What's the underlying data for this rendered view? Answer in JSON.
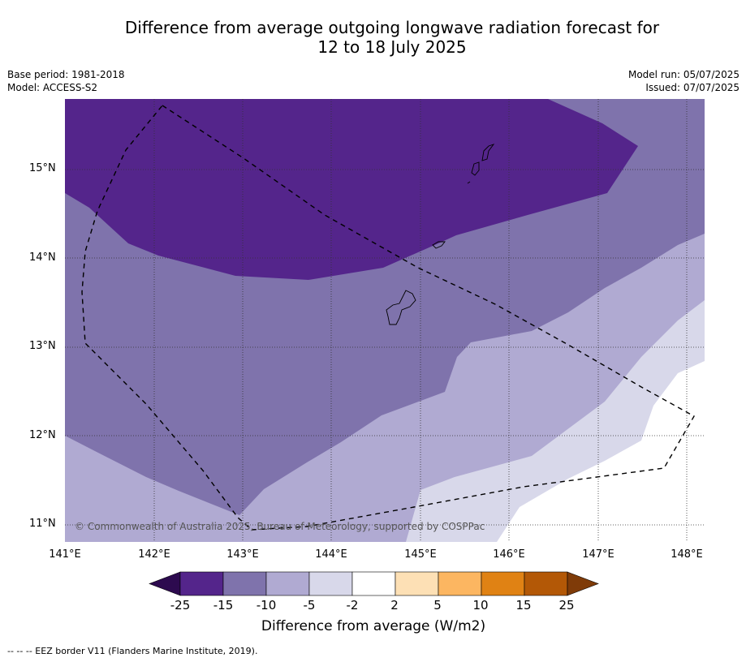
{
  "title_line1": "Difference from average outgoing longwave radiation forecast for",
  "title_line2": "12 to 18 July 2025",
  "meta": {
    "base_period": "Base period: 1981-2018",
    "model": "Model: ACCESS-S2",
    "model_run": "Model run: 05/07/2025",
    "issued": "Issued: 07/07/2025"
  },
  "copyright": "© Commonwealth of Australia 2025, Bureau of Meteorology, supported by COSPPac",
  "lat_labels": [
    "15°N",
    "14°N",
    "13°N",
    "12°N",
    "11°N"
  ],
  "lon_labels": [
    "141°E",
    "142°E",
    "143°E",
    "144°E",
    "145°E",
    "146°E",
    "147°E",
    "148°E"
  ],
  "colorbar": {
    "ticks": [
      "-25",
      "-15",
      "-10",
      "-5",
      "-2",
      "2",
      "5",
      "10",
      "15",
      "25"
    ],
    "colors": [
      "#2d0a4f",
      "#54258b",
      "#7f73ac",
      "#b0aad2",
      "#d8d8ea",
      "#ffffff",
      "#fde0b5",
      "#fcb661",
      "#e08214",
      "#b35806",
      "#7f3b08"
    ],
    "title": "Difference from average (W/m2)"
  },
  "footnote": "--  --  -- EEZ border V11 (Flanders Marine Institute, 2019)."
}
